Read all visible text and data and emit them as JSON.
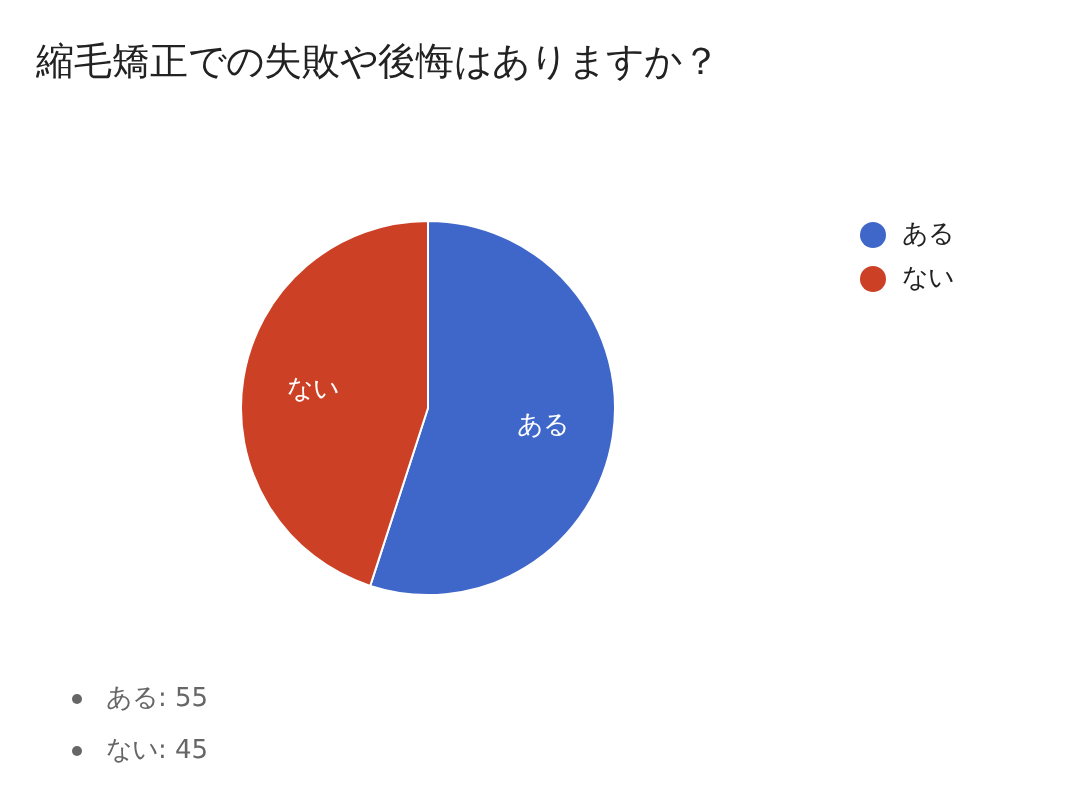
{
  "chart_data": {
    "type": "pie",
    "title": "縮毛矯正での失敗や後悔はありますか？",
    "categories": [
      "ある",
      "ない"
    ],
    "values": [
      55,
      45
    ],
    "colors": [
      "#3f67c9",
      "#cc4125"
    ],
    "legend": "right",
    "annotations": [
      "ある: 55",
      "ない: 45"
    ]
  }
}
